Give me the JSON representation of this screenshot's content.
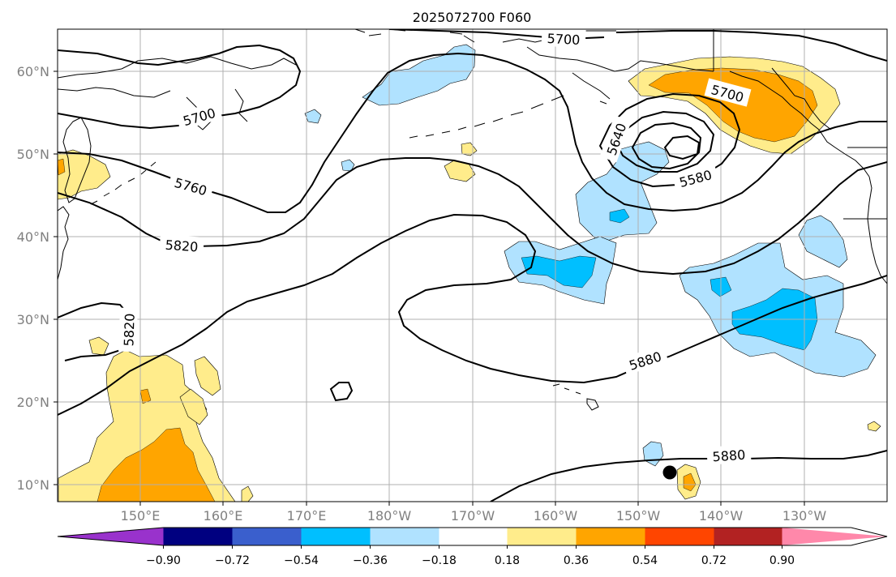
{
  "title": "2025072700 F060",
  "lat_labels": [
    "60°N",
    "50°N",
    "40°N",
    "30°N",
    "20°N",
    "10°N"
  ],
  "lon_labels": [
    "150°E",
    "160°E",
    "170°E",
    "180°W",
    "170°W",
    "160°W",
    "150°W",
    "140°W",
    "130°W"
  ],
  "contour_labels": [
    "5700",
    "5700",
    "5700",
    "5640",
    "5580",
    "5760",
    "5820",
    "5820",
    "5880",
    "5880"
  ],
  "colorbar": {
    "colors": [
      "#9932CC",
      "#000080",
      "#3A5FCD",
      "#00BFFF",
      "#B0E2FF",
      "#FFFFFF",
      "#FFEC8B",
      "#FFA500",
      "#FF4500",
      "#B22222",
      "#FF88AA"
    ],
    "tick_labels": [
      "−0.90",
      "−0.72",
      "−0.54",
      "−0.36",
      "−0.18",
      "0.18",
      "0.36",
      "0.54",
      "0.72",
      "0.90"
    ]
  },
  "map_extent": {
    "lon_min": 140,
    "lon_max": 240,
    "lat_min": 8,
    "lat_max": 65
  },
  "marker": {
    "lon": 214.0,
    "lat": 11.5
  }
}
